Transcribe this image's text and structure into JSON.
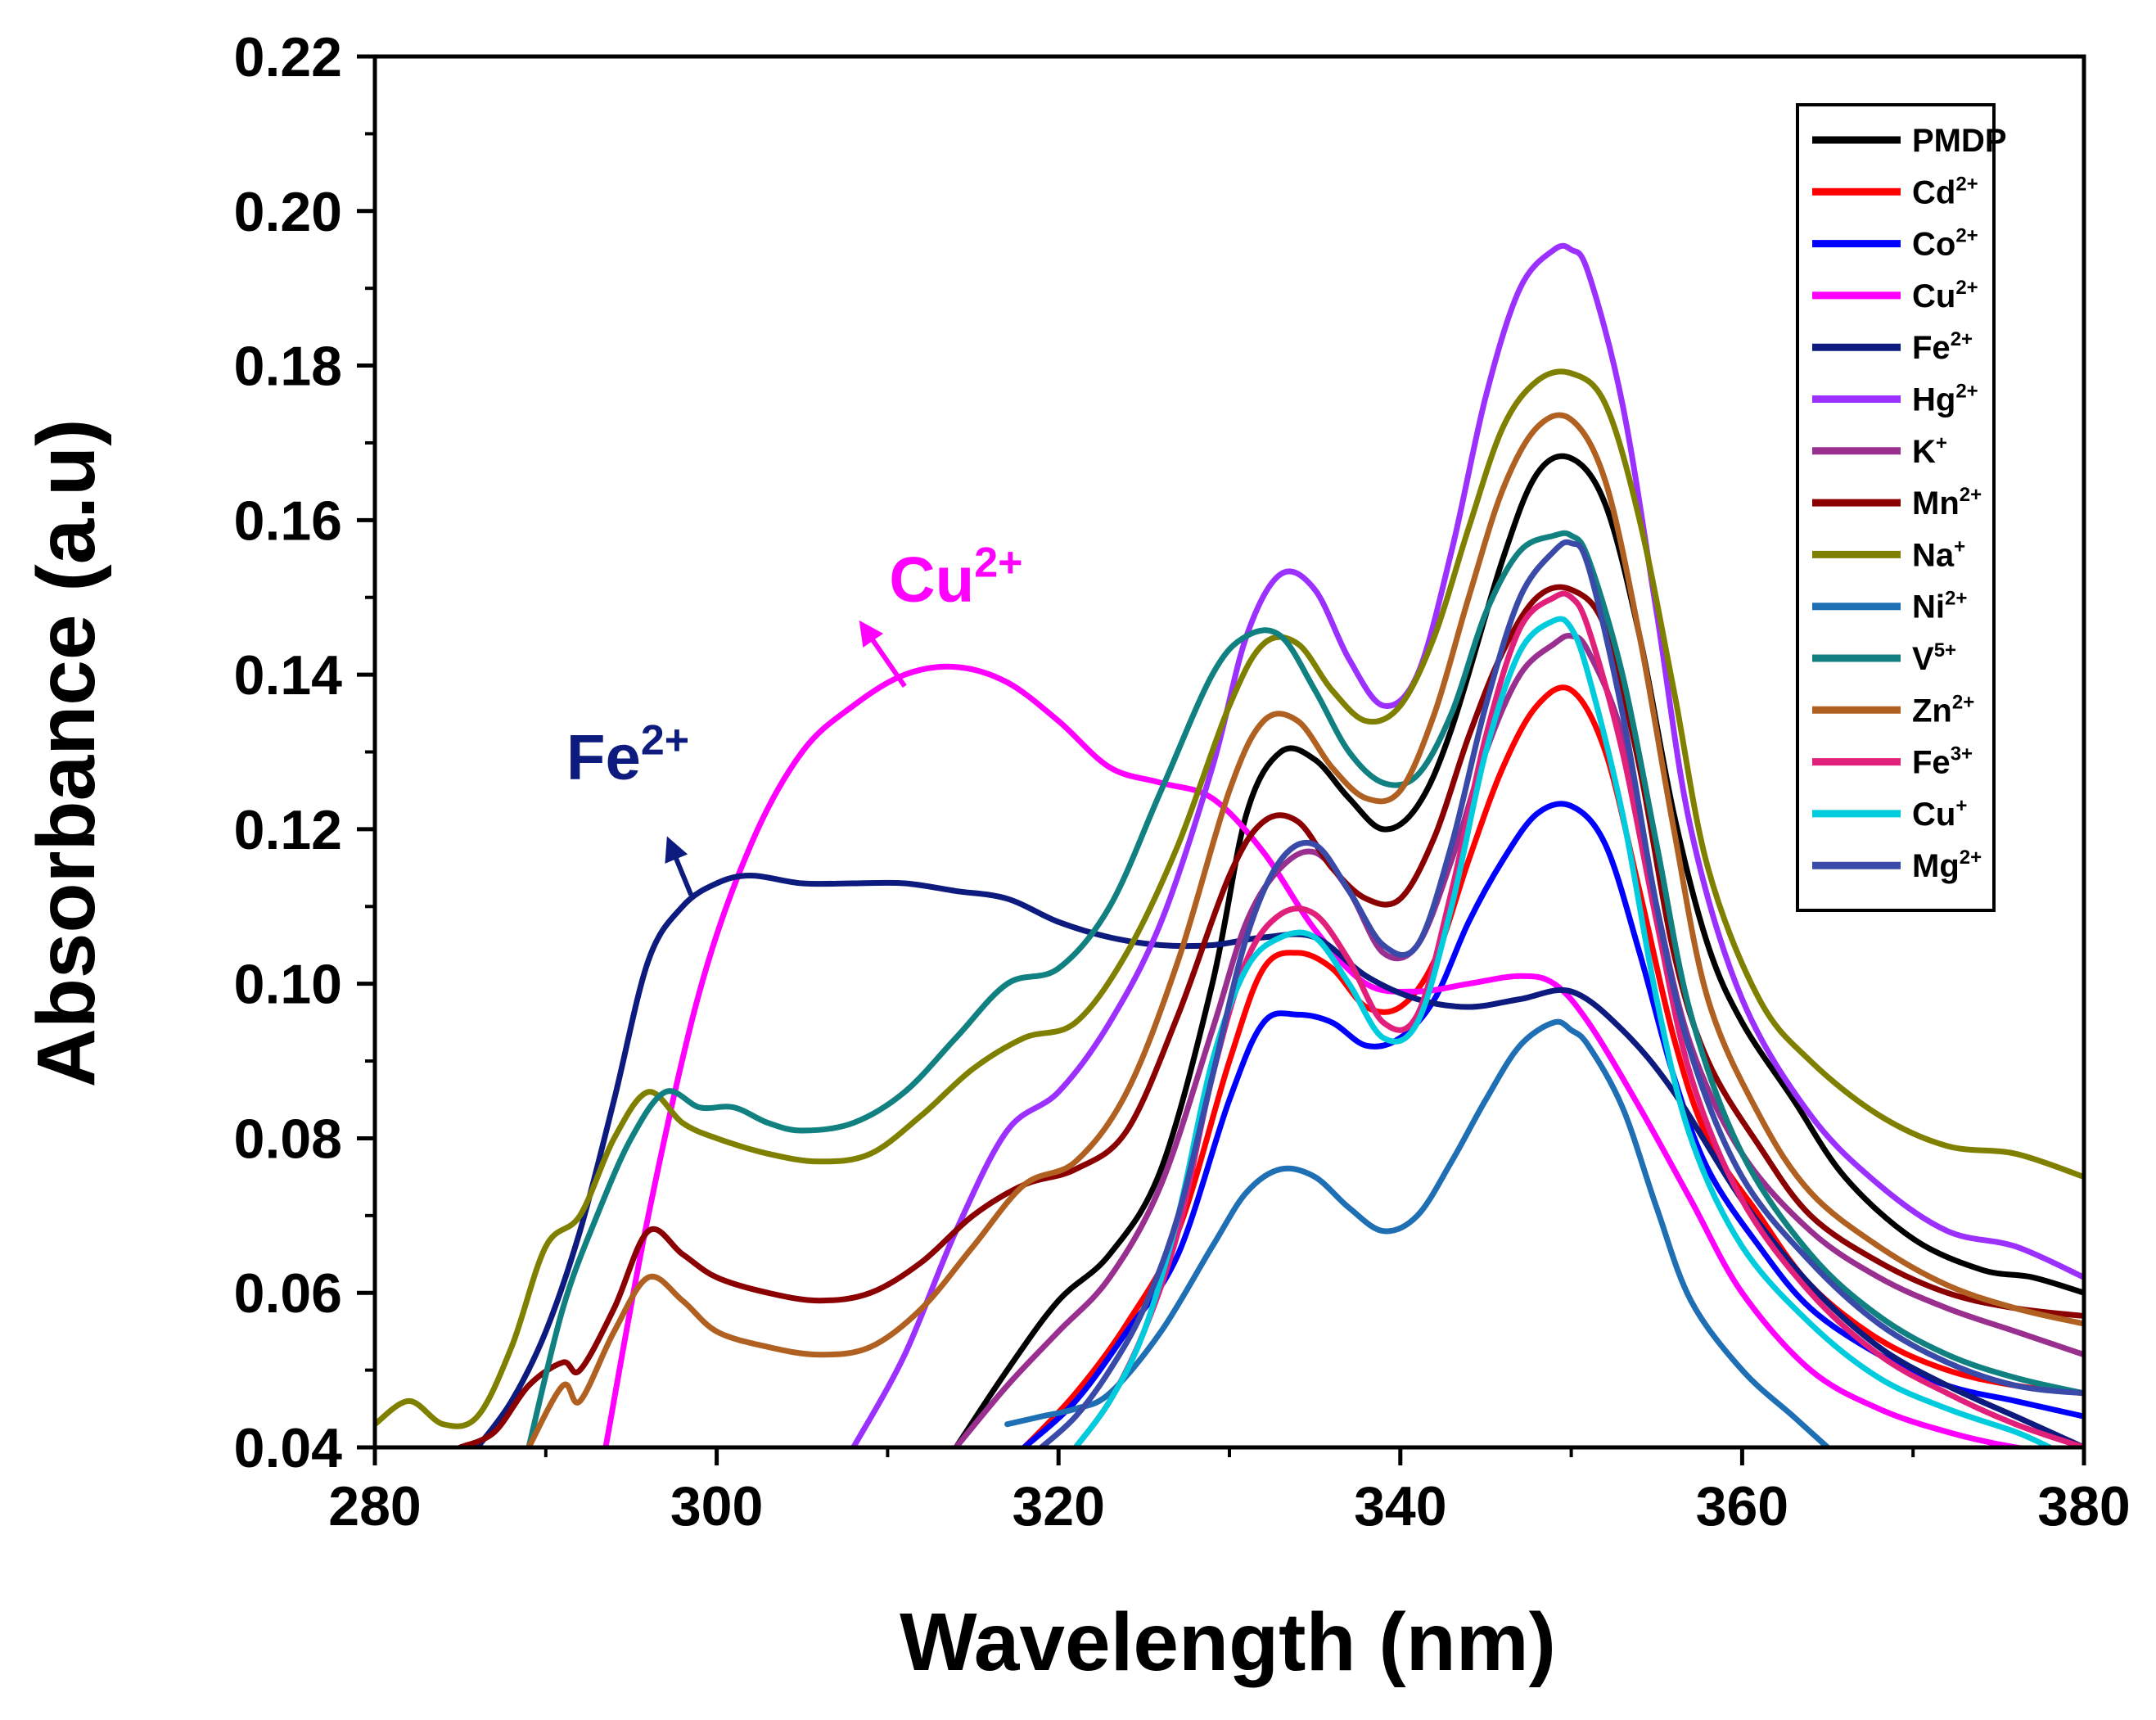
{
  "chart_data": {
    "type": "line",
    "title": "",
    "xlabel": "Wavelength (nm)",
    "ylabel": "Absorbance (a.u)",
    "xlim": [
      280,
      380
    ],
    "ylim": [
      0.04,
      0.22
    ],
    "grid": false,
    "legend_position": "top-right",
    "x_ticks": [
      "280",
      "300",
      "320",
      "340",
      "360",
      "380"
    ],
    "y_ticks": [
      "0.04",
      "0.06",
      "0.08",
      "0.10",
      "0.12",
      "0.14",
      "0.16",
      "0.18",
      "0.20",
      "0.22"
    ],
    "series": [
      {
        "name": "PMDP",
        "base": "PMDP",
        "sup": "",
        "color": "#000000",
        "x": [
          314,
          317,
          320,
          323,
          326,
          329,
          331,
          333,
          335,
          337,
          339,
          341,
          343,
          346,
          348,
          350,
          352,
          354,
          356,
          358,
          360,
          363,
          366,
          370,
          374,
          377,
          380
        ],
        "y": [
          0.04,
          0.05,
          0.059,
          0.065,
          0.076,
          0.1,
          0.122,
          0.13,
          0.129,
          0.124,
          0.12,
          0.123,
          0.133,
          0.155,
          0.166,
          0.168,
          0.162,
          0.145,
          0.122,
          0.105,
          0.095,
          0.085,
          0.075,
          0.067,
          0.063,
          0.062,
          0.06
        ]
      },
      {
        "name": "Cd2+",
        "base": "Cd",
        "sup": "2+",
        "color": "#ff0000",
        "x": [
          318,
          321,
          324,
          327,
          330,
          332,
          334,
          336,
          338,
          340,
          342,
          344,
          346,
          348,
          350,
          352,
          354,
          356,
          358,
          361,
          364,
          368,
          372,
          376,
          380
        ],
        "y": [
          0.04,
          0.047,
          0.056,
          0.068,
          0.09,
          0.102,
          0.104,
          0.102,
          0.097,
          0.097,
          0.103,
          0.116,
          0.128,
          0.136,
          0.138,
          0.13,
          0.112,
          0.093,
          0.08,
          0.07,
          0.061,
          0.054,
          0.05,
          0.048,
          0.047
        ]
      },
      {
        "name": "Co2+",
        "base": "Co",
        "sup": "2+",
        "color": "#0000ff",
        "x": [
          318,
          321,
          324,
          327,
          330,
          332,
          334,
          336,
          338,
          340,
          342,
          344,
          346,
          348,
          350,
          352,
          354,
          356,
          358,
          361,
          364,
          368,
          372,
          376,
          380
        ],
        "y": [
          0.04,
          0.046,
          0.055,
          0.065,
          0.085,
          0.095,
          0.096,
          0.095,
          0.092,
          0.093,
          0.098,
          0.108,
          0.116,
          0.122,
          0.123,
          0.118,
          0.104,
          0.088,
          0.076,
          0.066,
          0.058,
          0.052,
          0.048,
          0.046,
          0.044
        ]
      },
      {
        "name": "Cu2+",
        "base": "Cu",
        "sup": "2+",
        "color": "#ff00ff",
        "x": [
          293.5,
          296,
          299,
          302,
          305,
          308,
          311,
          314,
          317,
          320,
          323,
          326,
          329,
          332,
          335,
          338,
          341,
          344,
          347,
          349,
          351,
          354,
          357,
          360,
          364,
          368,
          372,
          376,
          380
        ],
        "y": [
          0.04,
          0.07,
          0.099,
          0.118,
          0.13,
          0.136,
          0.14,
          0.141,
          0.139,
          0.134,
          0.128,
          0.126,
          0.124,
          0.117,
          0.107,
          0.1,
          0.099,
          0.1,
          0.101,
          0.1,
          0.095,
          0.084,
          0.072,
          0.06,
          0.05,
          0.045,
          0.042,
          0.04,
          0.039
        ]
      },
      {
        "name": "Fe2+",
        "base": "Fe",
        "sup": "2+",
        "color": "#0d1a7e",
        "x": [
          286,
          288,
          290,
          292,
          294,
          296,
          298,
          300,
          302,
          305,
          308,
          311,
          314,
          317,
          320,
          323,
          326,
          329,
          332,
          335,
          338,
          341,
          344,
          347,
          350,
          353,
          356,
          360,
          364,
          368,
          372,
          376,
          380
        ],
        "y": [
          0.04,
          0.046,
          0.055,
          0.068,
          0.085,
          0.103,
          0.11,
          0.113,
          0.114,
          0.113,
          0.113,
          0.113,
          0.112,
          0.111,
          0.108,
          0.106,
          0.105,
          0.105,
          0.106,
          0.106,
          0.101,
          0.098,
          0.097,
          0.098,
          0.099,
          0.094,
          0.086,
          0.072,
          0.061,
          0.053,
          0.048,
          0.044,
          0.04
        ]
      },
      {
        "name": "Hg2+",
        "base": "Hg",
        "sup": "2+",
        "color": "#9b30ff",
        "x": [
          308,
          311,
          314,
          317,
          320,
          323,
          326,
          329,
          331,
          333,
          335,
          337,
          339,
          341,
          343,
          345,
          347,
          349,
          350,
          351,
          353,
          355,
          357,
          360,
          364,
          368,
          372,
          376,
          380
        ],
        "y": [
          0.04,
          0.052,
          0.068,
          0.081,
          0.086,
          0.095,
          0.108,
          0.128,
          0.145,
          0.153,
          0.151,
          0.142,
          0.136,
          0.14,
          0.156,
          0.176,
          0.19,
          0.195,
          0.195,
          0.192,
          0.175,
          0.148,
          0.12,
          0.098,
          0.083,
          0.074,
          0.068,
          0.066,
          0.062
        ]
      },
      {
        "name": "K+",
        "base": "K",
        "sup": "+",
        "color": "#992f8f",
        "x": [
          314,
          317,
          320,
          323,
          326,
          329,
          331,
          333,
          335,
          337,
          339,
          341,
          343,
          345,
          347,
          349,
          350,
          351,
          353,
          355,
          357,
          360,
          364,
          368,
          372,
          376,
          380
        ],
        "y": [
          0.04,
          0.048,
          0.055,
          0.062,
          0.074,
          0.094,
          0.108,
          0.115,
          0.117,
          0.112,
          0.104,
          0.105,
          0.116,
          0.13,
          0.14,
          0.144,
          0.145,
          0.143,
          0.132,
          0.11,
          0.092,
          0.078,
          0.068,
          0.062,
          0.058,
          0.055,
          0.052
        ]
      },
      {
        "name": "Mn2+",
        "base": "Mn",
        "sup": "2+",
        "color": "#8b0000",
        "x": [
          285,
          287,
          289,
          291,
          292,
          294,
          296,
          298,
          300,
          303,
          306,
          309,
          312,
          315,
          318,
          321,
          324,
          327,
          330,
          332,
          334,
          336,
          338,
          340,
          342,
          344,
          346,
          348,
          350,
          352,
          354,
          356,
          358,
          361,
          364,
          368,
          372,
          376,
          380
        ],
        "y": [
          0.04,
          0.042,
          0.048,
          0.051,
          0.05,
          0.058,
          0.068,
          0.065,
          0.062,
          0.06,
          0.059,
          0.06,
          0.064,
          0.07,
          0.074,
          0.076,
          0.081,
          0.096,
          0.114,
          0.121,
          0.121,
          0.115,
          0.111,
          0.111,
          0.119,
          0.132,
          0.143,
          0.15,
          0.151,
          0.146,
          0.128,
          0.104,
          0.09,
          0.079,
          0.07,
          0.064,
          0.06,
          0.058,
          0.057
        ]
      },
      {
        "name": "Na+",
        "base": "Na",
        "sup": "+",
        "color": "#808000",
        "x": [
          280,
          282,
          284,
          286,
          288,
          290,
          292,
          294,
          296,
          298,
          300,
          303,
          306,
          309,
          312,
          315,
          318,
          321,
          324,
          327,
          330,
          332,
          334,
          336,
          338,
          340,
          342,
          344,
          346,
          348,
          350,
          352,
          354,
          356,
          358,
          361,
          364,
          368,
          372,
          376,
          380
        ],
        "y": [
          0.043,
          0.046,
          0.043,
          0.044,
          0.053,
          0.066,
          0.07,
          0.08,
          0.086,
          0.082,
          0.08,
          0.078,
          0.077,
          0.078,
          0.083,
          0.089,
          0.093,
          0.095,
          0.104,
          0.118,
          0.136,
          0.144,
          0.144,
          0.138,
          0.134,
          0.136,
          0.145,
          0.159,
          0.172,
          0.178,
          0.179,
          0.175,
          0.16,
          0.138,
          0.115,
          0.098,
          0.09,
          0.083,
          0.079,
          0.078,
          0.075
        ]
      },
      {
        "name": "Ni2+",
        "base": "Ni",
        "sup": "2+",
        "color": "#1f6fb4",
        "x": [
          317,
          319,
          321,
          323,
          326,
          329,
          331,
          333,
          335,
          337,
          339,
          341,
          343,
          345,
          347,
          349,
          350,
          351,
          353,
          355,
          357,
          360,
          363,
          365
        ],
        "y": [
          0.043,
          0.044,
          0.045,
          0.047,
          0.055,
          0.066,
          0.073,
          0.076,
          0.075,
          0.071,
          0.068,
          0.07,
          0.077,
          0.085,
          0.092,
          0.095,
          0.094,
          0.092,
          0.084,
          0.071,
          0.059,
          0.05,
          0.044,
          0.04
        ]
      },
      {
        "name": "V5+",
        "base": "V",
        "sup": "5+",
        "color": "#108080",
        "x": [
          289,
          291,
          293,
          295,
          297,
          299,
          301,
          303,
          305,
          308,
          311,
          314,
          317,
          320,
          323,
          326,
          329,
          331,
          333,
          335,
          337,
          339,
          341,
          343,
          345,
          347,
          349,
          350,
          351,
          353,
          355,
          357,
          360,
          364,
          368,
          372,
          376,
          380
        ],
        "y": [
          0.04,
          0.058,
          0.07,
          0.08,
          0.086,
          0.084,
          0.084,
          0.082,
          0.081,
          0.082,
          0.086,
          0.093,
          0.1,
          0.102,
          0.11,
          0.125,
          0.14,
          0.145,
          0.145,
          0.138,
          0.13,
          0.126,
          0.127,
          0.135,
          0.148,
          0.156,
          0.158,
          0.158,
          0.155,
          0.14,
          0.118,
          0.096,
          0.078,
          0.065,
          0.057,
          0.052,
          0.049,
          0.047
        ]
      },
      {
        "name": "Zn2+",
        "base": "Zn",
        "sup": "2+",
        "color": "#b06020",
        "x": [
          289,
          291,
          292,
          294,
          296,
          298,
          300,
          303,
          306,
          309,
          312,
          315,
          318,
          321,
          324,
          327,
          330,
          332,
          334,
          336,
          338,
          340,
          342,
          344,
          346,
          348,
          350,
          352,
          354,
          356,
          358,
          361,
          364,
          368,
          372,
          376,
          380
        ],
        "y": [
          0.04,
          0.048,
          0.046,
          0.055,
          0.062,
          0.059,
          0.055,
          0.053,
          0.052,
          0.053,
          0.058,
          0.066,
          0.074,
          0.077,
          0.086,
          0.103,
          0.125,
          0.134,
          0.134,
          0.128,
          0.124,
          0.125,
          0.135,
          0.15,
          0.164,
          0.172,
          0.173,
          0.165,
          0.145,
          0.12,
          0.098,
          0.083,
          0.073,
          0.066,
          0.061,
          0.058,
          0.056
        ]
      },
      {
        "name": "Fe3+",
        "base": "Fe",
        "sup": "3+",
        "color": "#e0207a",
        "x": [
          321,
          323,
          325,
          327,
          329,
          331,
          333,
          335,
          337,
          339,
          341,
          343,
          345,
          347,
          349,
          350,
          351,
          353,
          355,
          357,
          360,
          364,
          368,
          372,
          376,
          380
        ],
        "y": [
          0.04,
          0.046,
          0.055,
          0.068,
          0.088,
          0.103,
          0.109,
          0.109,
          0.103,
          0.095,
          0.096,
          0.112,
          0.132,
          0.146,
          0.15,
          0.15,
          0.146,
          0.13,
          0.108,
          0.088,
          0.072,
          0.06,
          0.052,
          0.047,
          0.043,
          0.04
        ]
      },
      {
        "name": "Cu+",
        "base": "Cu",
        "sup": "+",
        "color": "#00ccdd",
        "x": [
          321,
          323,
          325,
          327,
          329,
          331,
          333,
          335,
          337,
          339,
          341,
          343,
          345,
          347,
          349,
          350,
          351,
          353,
          355,
          357,
          360,
          364,
          368,
          372,
          376,
          378
        ],
        "y": [
          0.04,
          0.046,
          0.055,
          0.07,
          0.09,
          0.102,
          0.106,
          0.106,
          0.1,
          0.093,
          0.095,
          0.11,
          0.13,
          0.143,
          0.147,
          0.146,
          0.14,
          0.122,
          0.098,
          0.08,
          0.066,
          0.056,
          0.049,
          0.045,
          0.042,
          0.04
        ]
      },
      {
        "name": "Mg2+",
        "base": "Mg",
        "sup": "2+",
        "color": "#3a4aa8",
        "x": [
          319,
          321,
          323,
          325,
          327,
          329,
          331,
          333,
          335,
          337,
          339,
          341,
          343,
          345,
          347,
          349,
          350,
          351,
          353,
          355,
          357,
          360,
          364,
          368,
          372,
          376,
          380
        ],
        "y": [
          0.04,
          0.044,
          0.05,
          0.058,
          0.07,
          0.088,
          0.106,
          0.116,
          0.118,
          0.112,
          0.105,
          0.105,
          0.118,
          0.136,
          0.15,
          0.156,
          0.157,
          0.154,
          0.135,
          0.11,
          0.091,
          0.075,
          0.064,
          0.056,
          0.051,
          0.048,
          0.047
        ]
      }
    ],
    "annotations": [
      {
        "base": "Cu",
        "sup": "2+",
        "color": "#ff00ff",
        "text_x": 314,
        "text_y": 0.1495,
        "from_x": 311,
        "from_y": 0.1385,
        "to_x": 308.5,
        "to_y": 0.1465
      },
      {
        "base": "Fe",
        "sup": "2+",
        "color": "#0d1a7e",
        "text_x": 294.8,
        "text_y": 0.1265,
        "from_x": 298.5,
        "from_y": 0.1115,
        "to_x": 297.2,
        "to_y": 0.1185
      }
    ]
  }
}
